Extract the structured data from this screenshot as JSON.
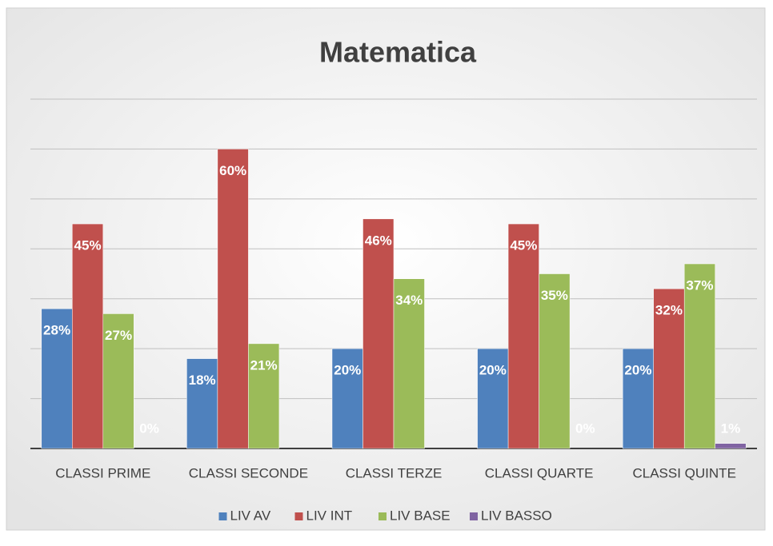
{
  "chart_data": {
    "type": "bar",
    "title": "Matematica",
    "categories": [
      "CLASSI PRIME",
      "CLASSI SECONDE",
      "CLASSI TERZE",
      "CLASSI QUARTE",
      "CLASSI QUINTE"
    ],
    "series": [
      {
        "name": "LIV AV",
        "color": "#4f81bd",
        "values": [
          28,
          18,
          20,
          20,
          20
        ],
        "value_labels": [
          "28%",
          "18%",
          "20%",
          "20%",
          "20%"
        ]
      },
      {
        "name": "LIV INT",
        "color": "#c0504d",
        "values": [
          45,
          60,
          46,
          45,
          32
        ],
        "value_labels": [
          "45%",
          "60%",
          "46%",
          "45%",
          "32%"
        ]
      },
      {
        "name": "LIV BASE",
        "color": "#9bbb59",
        "values": [
          27,
          21,
          34,
          35,
          37
        ],
        "value_labels": [
          "27%",
          "21%",
          "34%",
          "35%",
          "37%"
        ]
      },
      {
        "name": "LIV BASSO",
        "color": "#8064a2",
        "values": [
          0,
          null,
          null,
          0,
          1
        ],
        "value_labels": [
          "0%",
          null,
          null,
          "0%",
          "1%"
        ]
      }
    ],
    "ylim": [
      0,
      70
    ],
    "yticks": [
      0,
      10,
      20,
      30,
      40,
      50,
      60,
      70
    ],
    "grid": true,
    "legend": "bottom"
  }
}
